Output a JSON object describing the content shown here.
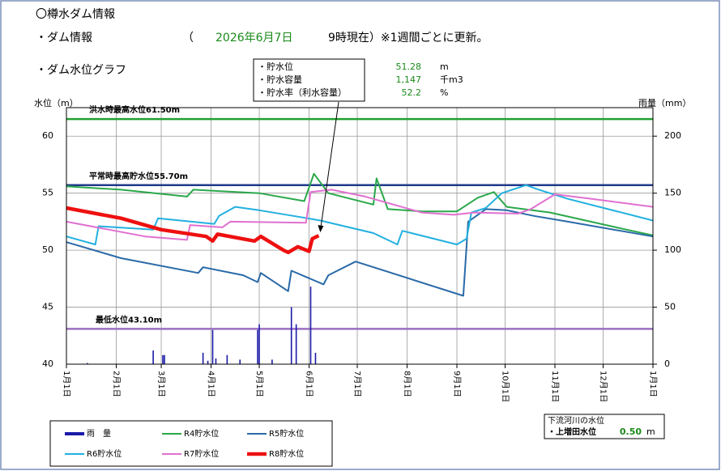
{
  "header": {
    "title": "〇樽水ダム情報",
    "dam_info": "・ダム情報",
    "paren_open": "（",
    "date": "2026年6月7日",
    "time_note": "9時現在）※1週間ごとに更新。",
    "graph_title": "・ダム水位グラフ"
  },
  "info_box": {
    "items": [
      {
        "label": "・貯水位",
        "value": "51.28",
        "unit": "m"
      },
      {
        "label": "・貯水容量",
        "value": "1,147",
        "unit": "千m3"
      },
      {
        "label": "・貯水率（利水容量）",
        "value": "52.2",
        "unit": "%"
      }
    ]
  },
  "river_box": {
    "title": "下流河川の水位",
    "label": "・上増田水位",
    "value": "0.50",
    "unit": "m"
  },
  "chart_data": {
    "type": "line",
    "y_label": "水位（m）",
    "y2_label": "雨量（mm）",
    "xlim": [
      0,
      365
    ],
    "ylim": [
      40,
      62.5
    ],
    "y2lim": [
      0,
      225
    ],
    "yticks": [
      40,
      45,
      50,
      55,
      60
    ],
    "y2ticks": [
      0,
      50,
      100,
      150,
      200
    ],
    "xticks": [
      {
        "value": 0,
        "label": "1月1日"
      },
      {
        "value": 31,
        "label": "2月1日"
      },
      {
        "value": 59,
        "label": "3月1日"
      },
      {
        "value": 90,
        "label": "4月1日"
      },
      {
        "value": 120,
        "label": "5月1日"
      },
      {
        "value": 151,
        "label": "6月1日"
      },
      {
        "value": 181,
        "label": "7月1日"
      },
      {
        "value": 212,
        "label": "8月1日"
      },
      {
        "value": 243,
        "label": "9月1日"
      },
      {
        "value": 273,
        "label": "10月1日"
      },
      {
        "value": 304,
        "label": "11月1日"
      },
      {
        "value": 334,
        "label": "12月1日"
      },
      {
        "value": 365,
        "label": "1月1日"
      }
    ],
    "grid": true,
    "reference_lines": [
      {
        "label": "洪水時最高水位61.50m",
        "value": 61.5,
        "color": "#22a030"
      },
      {
        "label": "平常時最高貯水位55.70m",
        "value": 55.7,
        "color": "#1f3a8a"
      },
      {
        "label": "最低水位43.10m",
        "value": 43.1,
        "color": "#9b6fc0"
      }
    ],
    "series": [
      {
        "name": "雨　量",
        "color": "#1a1aa8",
        "axis": "y2",
        "mark": "bar",
        "x": [
          13,
          54,
          60,
          61,
          85,
          88,
          91,
          93,
          100,
          108,
          119,
          120,
          128,
          140,
          143,
          152,
          155
        ],
        "values": [
          1,
          12,
          8,
          8,
          10,
          3,
          30,
          5,
          8,
          4,
          30,
          35,
          4,
          50,
          35,
          68,
          10
        ]
      },
      {
        "name": "R4貯水位",
        "color": "#2aa84a",
        "width": 2,
        "x": [
          0,
          34,
          75,
          79,
          120,
          148,
          154,
          163,
          191,
          193,
          200,
          221,
          243,
          256,
          266,
          274,
          301,
          342,
          365
        ],
        "values": [
          55.6,
          55.3,
          54.7,
          55.3,
          55.0,
          54.3,
          56.7,
          55.0,
          54.0,
          56.3,
          53.6,
          53.4,
          53.4,
          54.6,
          55.1,
          53.8,
          53.3,
          52.0,
          51.3
        ]
      },
      {
        "name": "R5貯水位",
        "color": "#2a6aa8",
        "width": 2,
        "x": [
          0,
          34,
          82,
          85,
          110,
          119,
          121,
          138,
          140,
          160,
          163,
          180,
          247,
          250,
          261,
          274,
          291,
          312,
          365
        ],
        "values": [
          50.7,
          49.3,
          48.0,
          48.5,
          47.8,
          47.2,
          48.0,
          46.4,
          48.2,
          47.0,
          47.8,
          49.0,
          46.0,
          52.5,
          53.6,
          53.5,
          53.0,
          52.5,
          51.2
        ]
      },
      {
        "name": "R6貯水位",
        "color": "#22b0e0",
        "width": 2,
        "x": [
          0,
          18,
          20,
          54,
          57,
          92,
          95,
          105,
          120,
          150,
          158,
          191,
          206,
          209,
          243,
          249,
          252,
          261,
          271,
          286,
          294,
          312,
          365
        ],
        "values": [
          51.2,
          50.5,
          52.1,
          51.8,
          52.8,
          52.3,
          53.0,
          53.8,
          53.5,
          52.8,
          52.6,
          51.5,
          50.5,
          51.7,
          50.5,
          51.0,
          53.3,
          53.7,
          55.0,
          55.7,
          55.3,
          54.5,
          52.6
        ]
      },
      {
        "name": "R7貯水位",
        "color": "#e070d0",
        "width": 2,
        "x": [
          0,
          49,
          75,
          77,
          97,
          102,
          149,
          152,
          165,
          186,
          221,
          241,
          254,
          281,
          289,
          304,
          327,
          365
        ],
        "values": [
          52.5,
          51.2,
          50.9,
          52.2,
          52.0,
          52.5,
          52.4,
          55.1,
          55.3,
          54.7,
          53.3,
          53.1,
          53.3,
          53.2,
          53.6,
          54.9,
          54.5,
          53.8
        ]
      },
      {
        "name": "R8貯水位",
        "color": "#ee1010",
        "width": 4.5,
        "x": [
          0,
          34,
          59,
          87,
          91,
          94,
          117,
          121,
          135,
          138,
          144,
          151,
          153,
          157
        ],
        "values": [
          53.7,
          52.8,
          51.8,
          51.2,
          50.8,
          51.4,
          50.8,
          51.2,
          50.0,
          49.8,
          50.3,
          49.9,
          51.0,
          51.28
        ]
      }
    ]
  }
}
